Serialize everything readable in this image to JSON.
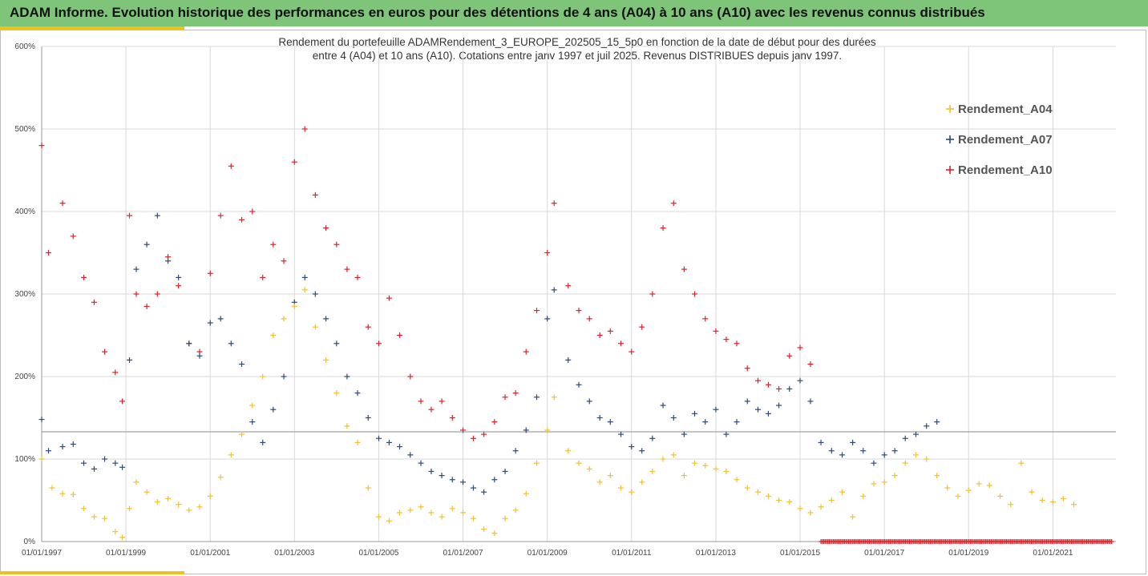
{
  "header": {
    "title": "ADAM Informe. Evolution historique des performances en euros pour des détentions de 4 ans (A04) à 10 ans (A10) avec les revenus connus distribués",
    "banner_color": "#7ec57a",
    "accent_color": "#f0c020"
  },
  "chart_data": {
    "type": "scatter",
    "title_lines": [
      "Rendement du portefeuille ADAMRendement_3_EUROPE_202505_15_5p0  en fonction de la date de début pour des durées",
      "entre 4 (A04) et 10 ans (A10). Cotations entre janv 1997 et juil 2025. Revenus DISTRIBUES depuis janv 1997."
    ],
    "y_ticks": [
      "0%",
      "100%",
      "200%",
      "300%",
      "400%",
      "500%",
      "600%"
    ],
    "ylim": [
      0,
      600
    ],
    "xlim": [
      "1997-01-01",
      "2022-07-01"
    ],
    "x_ticks": [
      "01/01/1997",
      "01/01/1999",
      "01/01/2001",
      "01/01/2003",
      "01/01/2005",
      "01/01/2007",
      "01/01/2009",
      "01/01/2011",
      "01/01/2013",
      "01/01/2015",
      "01/01/2017",
      "01/01/2019",
      "01/01/2021"
    ],
    "grid": true,
    "legend_position": "top-right",
    "marker": "+",
    "reference_line_y": 133,
    "series": [
      {
        "name": "Rendement_A04",
        "color": "#f2c12e",
        "points": [
          [
            "1997-01-01",
            100
          ],
          [
            "1997-04-01",
            65
          ],
          [
            "1997-07-01",
            58
          ],
          [
            "1997-10-01",
            57
          ],
          [
            "1998-01-01",
            40
          ],
          [
            "1998-04-01",
            30
          ],
          [
            "1998-07-01",
            28
          ],
          [
            "1998-10-01",
            12
          ],
          [
            "1998-12-01",
            5
          ],
          [
            "1999-02-01",
            40
          ],
          [
            "1999-04-01",
            72
          ],
          [
            "1999-07-01",
            60
          ],
          [
            "1999-10-01",
            48
          ],
          [
            "2000-01-01",
            52
          ],
          [
            "2000-04-01",
            45
          ],
          [
            "2000-07-01",
            38
          ],
          [
            "2000-10-01",
            42
          ],
          [
            "2001-01-01",
            55
          ],
          [
            "2001-04-01",
            78
          ],
          [
            "2001-07-01",
            105
          ],
          [
            "2001-10-01",
            130
          ],
          [
            "2002-01-01",
            165
          ],
          [
            "2002-04-01",
            200
          ],
          [
            "2002-07-01",
            250
          ],
          [
            "2002-10-01",
            270
          ],
          [
            "2003-01-01",
            285
          ],
          [
            "2003-04-01",
            305
          ],
          [
            "2003-07-01",
            260
          ],
          [
            "2003-10-01",
            220
          ],
          [
            "2004-01-01",
            180
          ],
          [
            "2004-04-01",
            140
          ],
          [
            "2004-07-01",
            120
          ],
          [
            "2004-10-01",
            65
          ],
          [
            "2005-01-01",
            30
          ],
          [
            "2005-04-01",
            25
          ],
          [
            "2005-07-01",
            35
          ],
          [
            "2005-10-01",
            38
          ],
          [
            "2006-01-01",
            42
          ],
          [
            "2006-04-01",
            35
          ],
          [
            "2006-07-01",
            30
          ],
          [
            "2006-10-01",
            40
          ],
          [
            "2007-01-01",
            35
          ],
          [
            "2007-04-01",
            28
          ],
          [
            "2007-07-01",
            15
          ],
          [
            "2007-10-01",
            10
          ],
          [
            "2008-01-01",
            28
          ],
          [
            "2008-04-01",
            38
          ],
          [
            "2008-07-01",
            58
          ],
          [
            "2008-10-01",
            95
          ],
          [
            "2009-01-01",
            135
          ],
          [
            "2009-03-01",
            175
          ],
          [
            "2009-07-01",
            110
          ],
          [
            "2009-10-01",
            95
          ],
          [
            "2010-01-01",
            88
          ],
          [
            "2010-04-01",
            72
          ],
          [
            "2010-07-01",
            80
          ],
          [
            "2010-10-01",
            65
          ],
          [
            "2011-01-01",
            60
          ],
          [
            "2011-04-01",
            72
          ],
          [
            "2011-07-01",
            85
          ],
          [
            "2011-10-01",
            100
          ],
          [
            "2012-01-01",
            105
          ],
          [
            "2012-04-01",
            80
          ],
          [
            "2012-07-01",
            95
          ],
          [
            "2012-10-01",
            92
          ],
          [
            "2013-01-01",
            88
          ],
          [
            "2013-04-01",
            85
          ],
          [
            "2013-07-01",
            75
          ],
          [
            "2013-10-01",
            65
          ],
          [
            "2014-01-01",
            60
          ],
          [
            "2014-04-01",
            55
          ],
          [
            "2014-07-01",
            50
          ],
          [
            "2014-10-01",
            48
          ],
          [
            "2015-01-01",
            40
          ],
          [
            "2015-04-01",
            35
          ],
          [
            "2015-07-01",
            42
          ],
          [
            "2015-10-01",
            50
          ],
          [
            "2016-01-01",
            60
          ],
          [
            "2016-04-01",
            30
          ],
          [
            "2016-07-01",
            55
          ],
          [
            "2016-10-01",
            70
          ],
          [
            "2017-01-01",
            72
          ],
          [
            "2017-04-01",
            80
          ],
          [
            "2017-07-01",
            95
          ],
          [
            "2017-10-01",
            105
          ],
          [
            "2018-01-01",
            100
          ],
          [
            "2018-04-01",
            80
          ],
          [
            "2018-07-01",
            65
          ],
          [
            "2018-10-01",
            55
          ],
          [
            "2019-01-01",
            62
          ],
          [
            "2019-04-01",
            70
          ],
          [
            "2019-07-01",
            68
          ],
          [
            "2019-10-01",
            55
          ],
          [
            "2020-01-01",
            45
          ],
          [
            "2020-04-01",
            95
          ],
          [
            "2020-07-01",
            60
          ],
          [
            "2020-10-01",
            50
          ],
          [
            "2021-01-01",
            48
          ],
          [
            "2021-04-01",
            52
          ],
          [
            "2021-07-01",
            45
          ]
        ]
      },
      {
        "name": "Rendement_A07",
        "color": "#2e4a75",
        "points": [
          [
            "1997-01-01",
            148
          ],
          [
            "1997-03-01",
            110
          ],
          [
            "1997-07-01",
            115
          ],
          [
            "1997-10-01",
            118
          ],
          [
            "1998-01-01",
            95
          ],
          [
            "1998-04-01",
            88
          ],
          [
            "1998-07-01",
            100
          ],
          [
            "1998-10-01",
            95
          ],
          [
            "1998-12-01",
            90
          ],
          [
            "1999-02-01",
            220
          ],
          [
            "1999-04-01",
            330
          ],
          [
            "1999-07-01",
            360
          ],
          [
            "1999-10-01",
            395
          ],
          [
            "2000-01-01",
            340
          ],
          [
            "2000-04-01",
            320
          ],
          [
            "2000-07-01",
            240
          ],
          [
            "2000-10-01",
            225
          ],
          [
            "2001-01-01",
            265
          ],
          [
            "2001-04-01",
            270
          ],
          [
            "2001-07-01",
            240
          ],
          [
            "2001-10-01",
            215
          ],
          [
            "2002-01-01",
            145
          ],
          [
            "2002-04-01",
            120
          ],
          [
            "2002-07-01",
            160
          ],
          [
            "2002-10-01",
            200
          ],
          [
            "2003-01-01",
            290
          ],
          [
            "2003-04-01",
            320
          ],
          [
            "2003-07-01",
            300
          ],
          [
            "2003-10-01",
            270
          ],
          [
            "2004-01-01",
            240
          ],
          [
            "2004-04-01",
            200
          ],
          [
            "2004-07-01",
            180
          ],
          [
            "2004-10-01",
            150
          ],
          [
            "2005-01-01",
            125
          ],
          [
            "2005-04-01",
            120
          ],
          [
            "2005-07-01",
            115
          ],
          [
            "2005-10-01",
            105
          ],
          [
            "2006-01-01",
            95
          ],
          [
            "2006-04-01",
            85
          ],
          [
            "2006-07-01",
            80
          ],
          [
            "2006-10-01",
            75
          ],
          [
            "2007-01-01",
            72
          ],
          [
            "2007-04-01",
            65
          ],
          [
            "2007-07-01",
            60
          ],
          [
            "2007-10-01",
            75
          ],
          [
            "2008-01-01",
            85
          ],
          [
            "2008-04-01",
            110
          ],
          [
            "2008-07-01",
            135
          ],
          [
            "2008-10-01",
            175
          ],
          [
            "2009-01-01",
            270
          ],
          [
            "2009-03-01",
            305
          ],
          [
            "2009-07-01",
            220
          ],
          [
            "2009-10-01",
            190
          ],
          [
            "2010-01-01",
            170
          ],
          [
            "2010-04-01",
            150
          ],
          [
            "2010-07-01",
            145
          ],
          [
            "2010-10-01",
            130
          ],
          [
            "2011-01-01",
            115
          ],
          [
            "2011-04-01",
            110
          ],
          [
            "2011-07-01",
            125
          ],
          [
            "2011-10-01",
            165
          ],
          [
            "2012-01-01",
            150
          ],
          [
            "2012-04-01",
            130
          ],
          [
            "2012-07-01",
            155
          ],
          [
            "2012-10-01",
            145
          ],
          [
            "2013-01-01",
            160
          ],
          [
            "2013-04-01",
            130
          ],
          [
            "2013-07-01",
            145
          ],
          [
            "2013-10-01",
            170
          ],
          [
            "2014-01-01",
            160
          ],
          [
            "2014-04-01",
            155
          ],
          [
            "2014-07-01",
            165
          ],
          [
            "2014-10-01",
            185
          ],
          [
            "2015-01-01",
            195
          ],
          [
            "2015-04-01",
            170
          ],
          [
            "2015-07-01",
            120
          ],
          [
            "2015-10-01",
            110
          ],
          [
            "2016-01-01",
            105
          ],
          [
            "2016-04-01",
            120
          ],
          [
            "2016-07-01",
            110
          ],
          [
            "2016-10-01",
            95
          ],
          [
            "2017-01-01",
            105
          ],
          [
            "2017-04-01",
            110
          ],
          [
            "2017-07-01",
            125
          ],
          [
            "2017-10-01",
            130
          ],
          [
            "2018-01-01",
            140
          ],
          [
            "2018-04-01",
            145
          ]
        ]
      },
      {
        "name": "Rendement_A10",
        "color": "#e0202a",
        "points": [
          [
            "1997-01-01",
            480
          ],
          [
            "1997-03-01",
            350
          ],
          [
            "1997-07-01",
            410
          ],
          [
            "1997-10-01",
            370
          ],
          [
            "1998-01-01",
            320
          ],
          [
            "1998-04-01",
            290
          ],
          [
            "1998-07-01",
            230
          ],
          [
            "1998-10-01",
            205
          ],
          [
            "1998-12-01",
            170
          ],
          [
            "1999-02-01",
            395
          ],
          [
            "1999-04-01",
            300
          ],
          [
            "1999-07-01",
            285
          ],
          [
            "1999-10-01",
            300
          ],
          [
            "2000-01-01",
            345
          ],
          [
            "2000-04-01",
            310
          ],
          [
            "2000-07-01",
            240
          ],
          [
            "2000-10-01",
            230
          ],
          [
            "2001-01-01",
            325
          ],
          [
            "2001-04-01",
            395
          ],
          [
            "2001-07-01",
            455
          ],
          [
            "2001-10-01",
            390
          ],
          [
            "2002-01-01",
            400
          ],
          [
            "2002-04-01",
            320
          ],
          [
            "2002-07-01",
            360
          ],
          [
            "2002-10-01",
            340
          ],
          [
            "2003-01-01",
            460
          ],
          [
            "2003-04-01",
            500
          ],
          [
            "2003-07-01",
            420
          ],
          [
            "2003-10-01",
            380
          ],
          [
            "2004-01-01",
            360
          ],
          [
            "2004-04-01",
            330
          ],
          [
            "2004-07-01",
            320
          ],
          [
            "2004-10-01",
            260
          ],
          [
            "2005-01-01",
            240
          ],
          [
            "2005-04-01",
            295
          ],
          [
            "2005-07-01",
            250
          ],
          [
            "2005-10-01",
            200
          ],
          [
            "2006-01-01",
            170
          ],
          [
            "2006-04-01",
            160
          ],
          [
            "2006-07-01",
            170
          ],
          [
            "2006-10-01",
            150
          ],
          [
            "2007-01-01",
            135
          ],
          [
            "2007-04-01",
            125
          ],
          [
            "2007-07-01",
            130
          ],
          [
            "2007-10-01",
            145
          ],
          [
            "2008-01-01",
            175
          ],
          [
            "2008-04-01",
            180
          ],
          [
            "2008-07-01",
            230
          ],
          [
            "2008-10-01",
            280
          ],
          [
            "2009-01-01",
            350
          ],
          [
            "2009-03-01",
            410
          ],
          [
            "2009-07-01",
            310
          ],
          [
            "2009-10-01",
            280
          ],
          [
            "2010-01-01",
            270
          ],
          [
            "2010-04-01",
            250
          ],
          [
            "2010-07-01",
            255
          ],
          [
            "2010-10-01",
            240
          ],
          [
            "2011-01-01",
            230
          ],
          [
            "2011-04-01",
            260
          ],
          [
            "2011-07-01",
            300
          ],
          [
            "2011-10-01",
            380
          ],
          [
            "2012-01-01",
            410
          ],
          [
            "2012-04-01",
            330
          ],
          [
            "2012-07-01",
            300
          ],
          [
            "2012-10-01",
            270
          ],
          [
            "2013-01-01",
            255
          ],
          [
            "2013-04-01",
            245
          ],
          [
            "2013-07-01",
            240
          ],
          [
            "2013-10-01",
            210
          ],
          [
            "2014-01-01",
            195
          ],
          [
            "2014-04-01",
            190
          ],
          [
            "2014-07-01",
            185
          ],
          [
            "2014-10-01",
            225
          ],
          [
            "2015-01-01",
            235
          ],
          [
            "2015-04-01",
            215
          ]
        ]
      }
    ],
    "zero_markers": {
      "name": "Rendement_A10",
      "color": "#e0202a",
      "x_start": "2015-07-01",
      "x_end": "2022-06-01",
      "value": 0
    }
  }
}
